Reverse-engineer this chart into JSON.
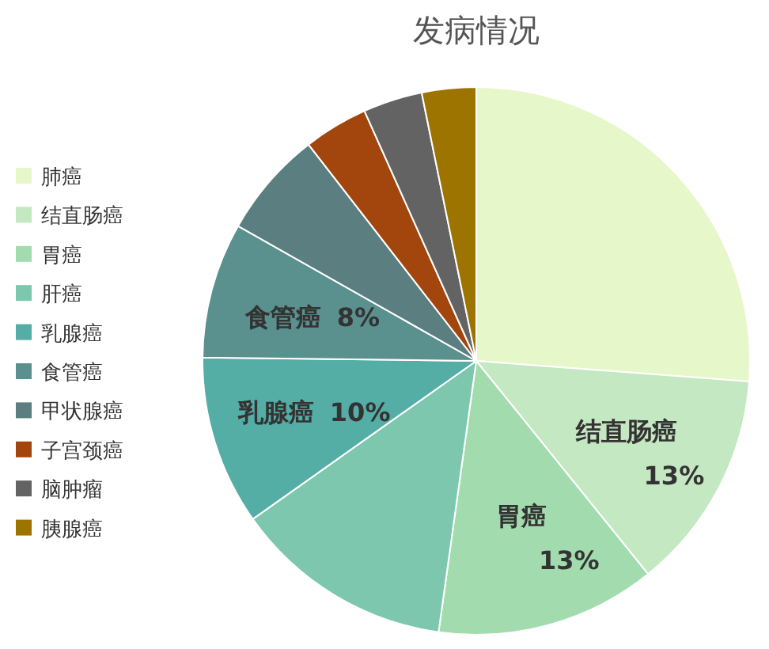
{
  "chart_data": {
    "type": "pie",
    "title": "发病情况",
    "legend": "left",
    "categories": [
      "肺癌",
      "结直肠癌",
      "胃癌",
      "肝癌",
      "乳腺癌",
      "食管癌",
      "甲状腺癌",
      "子宫颈癌",
      "脑肿瘤",
      "胰腺癌"
    ],
    "values": [
      26.2,
      13,
      13,
      13,
      10,
      8,
      6.3,
      3.8,
      3.5,
      3.2
    ],
    "colors": [
      "#e6f7c9",
      "#c4e8c1",
      "#a2dcae",
      "#7cc7ae",
      "#55aea6",
      "#5a908d",
      "#5b7f80",
      "#a2460e",
      "#636363",
      "#9d7400"
    ],
    "value_labels": [
      null,
      "13%",
      "13%",
      null,
      "10%",
      "8%",
      null,
      null,
      null,
      null
    ]
  }
}
